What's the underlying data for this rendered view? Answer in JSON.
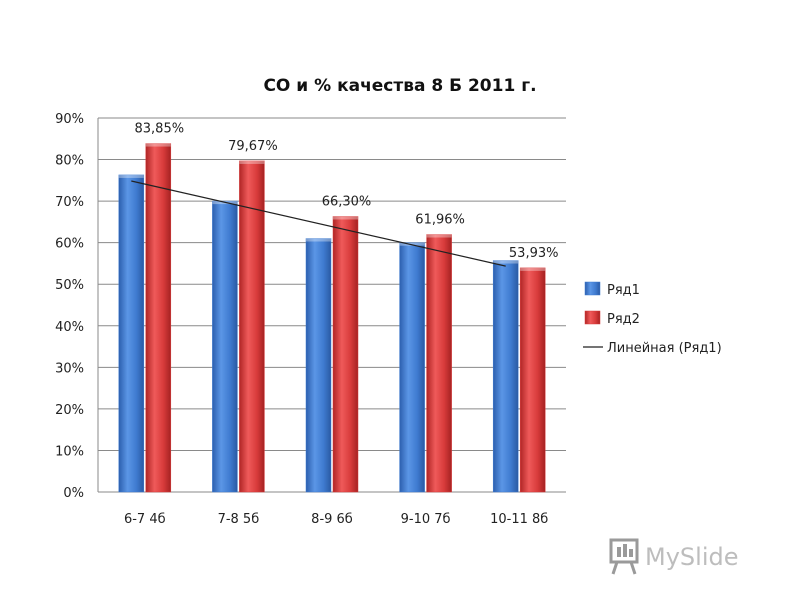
{
  "chart_data": {
    "type": "bar",
    "title": "СО и % качества 8 Б 2011 г.",
    "xlabel": "",
    "ylabel": "",
    "ylim": [
      0,
      90
    ],
    "yticks": [
      "0%",
      "10%",
      "20%",
      "30%",
      "40%",
      "50%",
      "60%",
      "70%",
      "80%",
      "90%"
    ],
    "categories": [
      "6-7 4б",
      "7-8 5б",
      "8-9 6б",
      "9-10 7б",
      "10-11 8б"
    ],
    "series": [
      {
        "name": "Ряд1",
        "values": [
          76.3,
          70.0,
          61.0,
          60.0,
          55.7
        ],
        "color": "#3f7bd0"
      },
      {
        "name": "Ряд2",
        "values": [
          83.85,
          79.67,
          66.3,
          61.96,
          53.93
        ],
        "color": "#d83b3b",
        "labels": [
          "83,85%",
          "79,67%",
          "66,30%",
          "61,96%",
          "53,93%"
        ]
      }
    ],
    "trendline": {
      "name": "Линейная (Ряд1)",
      "of_series": "Ряд1",
      "type": "linear",
      "color": "#222222"
    },
    "grid": true,
    "legend_position": "right"
  },
  "watermark": {
    "text": "MySlide",
    "icon": "presentation-board-icon"
  }
}
